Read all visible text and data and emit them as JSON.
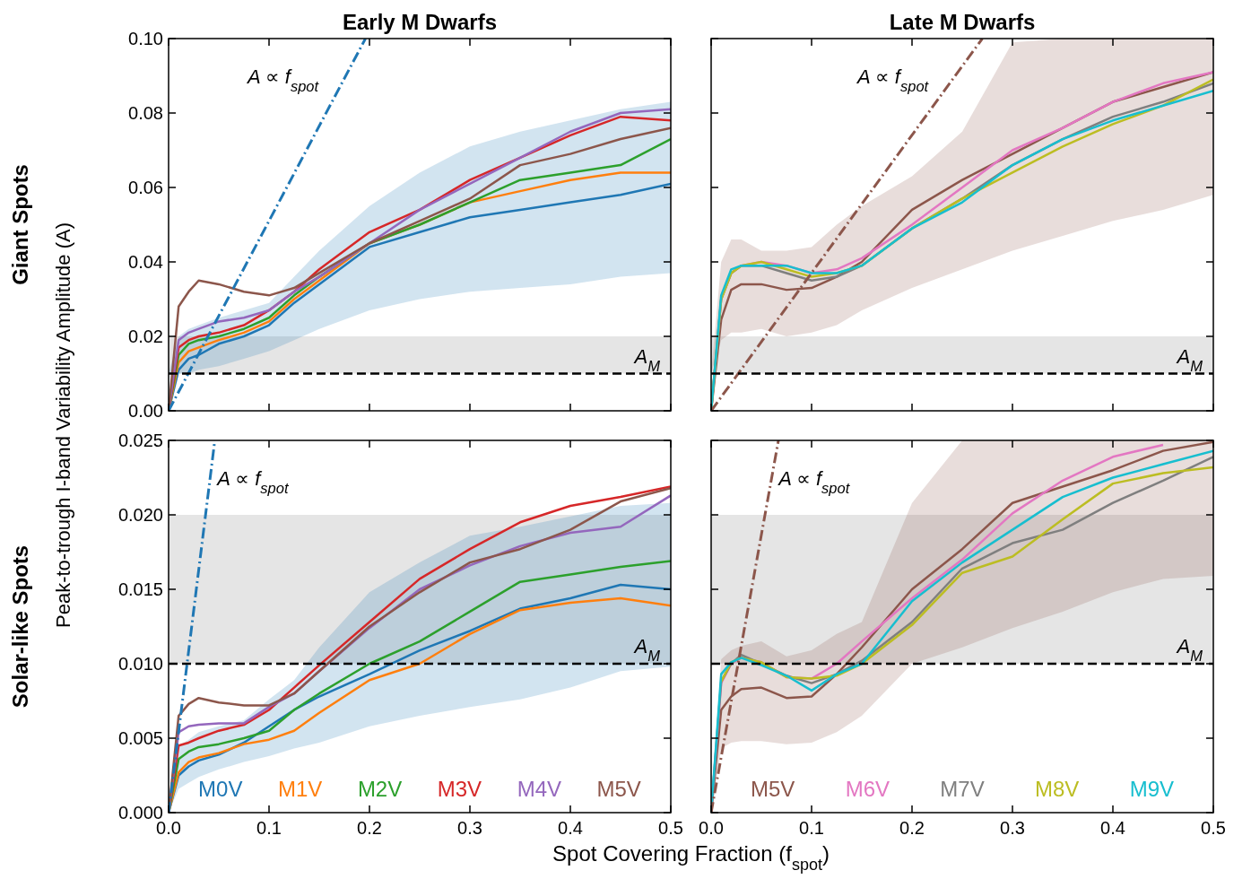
{
  "chart_data": [
    {
      "type": "line",
      "title": "Early M Dwarfs",
      "ylabel": "Giant Spots",
      "annotations": [
        "Peak-to-trough I-band Variability Amplitude  (A)",
        {
          "text": "A ∝ f$_{spot}$",
          "x": 0.176,
          "y": 0.09
        }
      ],
      "tick_labels": "y",
      "x": [
        0,
        0.01,
        0.02,
        0.03,
        0.05,
        0.075,
        0.1,
        0.125,
        0.15,
        0.2,
        0.25,
        0.3,
        0.35,
        0.4,
        0.45,
        0.5
      ],
      "xlim": [
        0,
        0.5
      ],
      "ylim": [
        0,
        0.1
      ],
      "xticks": [
        0,
        0.1,
        0.2,
        0.3,
        0.4,
        0.5
      ],
      "yticks": [
        {
          "value": 0,
          "label": "0.00"
        },
        {
          "value": 0.02,
          "label": "0.02"
        },
        {
          "value": 0.04,
          "label": "0.04"
        },
        {
          "value": 0.06,
          "label": "0.06"
        },
        {
          "value": 0.08,
          "label": "0.08"
        },
        {
          "value": 0.1,
          "label": "0.10"
        }
      ],
      "bands": [
        {
          "axis": "y",
          "from": 0.01,
          "to": 0.02,
          "color": "#e5e5e5"
        }
      ],
      "ref_lines": [
        {
          "axis": "y",
          "value": 0.01,
          "label": "A$_{M}$",
          "color": "#000000",
          "line_style": "dashed"
        }
      ],
      "series": [
        {
          "color": "#1f77b4",
          "values": [
            0,
            0.011,
            0.014,
            0.015,
            0.018,
            0.02,
            0.023,
            0.029,
            0.034,
            0.044,
            0.048,
            0.052,
            0.054,
            0.056,
            0.058,
            0.061
          ],
          "lower": [
            0.01,
            0.01,
            0.01,
            0.011,
            0.012,
            0.014,
            0.016,
            0.019,
            0.022,
            0.027,
            0.03,
            0.032,
            0.033,
            0.034,
            0.036,
            0.037
          ],
          "upper": [
            0.01,
            0.02,
            0.022,
            0.023,
            0.025,
            0.027,
            0.029,
            0.036,
            0.043,
            0.055,
            0.064,
            0.071,
            0.075,
            0.078,
            0.081,
            0.083
          ]
        },
        {
          "color": "#ff7f0e",
          "values": [
            0,
            0.013,
            0.016,
            0.017,
            0.019,
            0.021,
            0.024,
            0.03,
            0.035,
            0.045,
            0.05,
            0.056,
            0.059,
            0.062,
            0.064,
            0.064
          ]
        },
        {
          "color": "#2ca02c",
          "values": [
            0,
            0.015,
            0.018,
            0.019,
            0.02,
            0.022,
            0.025,
            0.031,
            0.036,
            0.045,
            0.05,
            0.056,
            0.062,
            0.064,
            0.066,
            0.073
          ]
        },
        {
          "color": "#d62728",
          "values": [
            0,
            0.017,
            0.019,
            0.02,
            0.021,
            0.023,
            0.027,
            0.032,
            0.038,
            0.048,
            0.054,
            0.062,
            0.068,
            0.074,
            0.079,
            0.078
          ]
        },
        {
          "color": "#9467bd",
          "values": [
            0,
            0.019,
            0.021,
            0.022,
            0.024,
            0.025,
            0.027,
            0.032,
            0.036,
            0.045,
            0.054,
            0.061,
            0.068,
            0.075,
            0.08,
            0.081
          ]
        },
        {
          "color": "#8c564b",
          "values": [
            0,
            0.028,
            0.032,
            0.035,
            0.034,
            0.032,
            0.031,
            0.033,
            0.037,
            0.045,
            0.051,
            0.057,
            0.066,
            0.069,
            0.073,
            0.076
          ]
        },
        {
          "type": "line",
          "color": "#1f77b4",
          "line_style": "dashdot",
          "x": [
            0,
            0.196
          ],
          "values": [
            0,
            0.1
          ]
        }
      ]
    },
    {
      "type": "line",
      "title": "Late M Dwarfs",
      "tick_labels": false,
      "annotations": [
        {
          "text": "A ∝ f$_{spot}$",
          "x": 0.243,
          "y": 0.09
        }
      ],
      "x": [
        0,
        0.01,
        0.02,
        0.03,
        0.05,
        0.075,
        0.1,
        0.125,
        0.15,
        0.2,
        0.25,
        0.3,
        0.35,
        0.4,
        0.45,
        0.5
      ],
      "xlim": [
        0,
        0.5
      ],
      "ylim": [
        0,
        0.1
      ],
      "xticks": [
        0,
        0.1,
        0.2,
        0.3,
        0.4,
        0.5
      ],
      "yticks": [
        0,
        0.02,
        0.04,
        0.06,
        0.08,
        0.1
      ],
      "bands": [
        {
          "axis": "y",
          "from": 0.01,
          "to": 0.02,
          "color": "#e5e5e5"
        }
      ],
      "ref_lines": [
        {
          "axis": "y",
          "value": 0.01,
          "label": "A$_{M}$",
          "color": "#000000",
          "line_style": "dashed"
        }
      ],
      "series": [
        {
          "color": "#8c564b",
          "values": [
            0,
            0.0245,
            0.0325,
            0.034,
            0.034,
            0.0325,
            0.033,
            0.036,
            0.04,
            0.054,
            0.062,
            0.069,
            0.076,
            0.083,
            0.087,
            0.091
          ],
          "lower": [
            0.01,
            0.019,
            0.021,
            0.021,
            0.022,
            0.02,
            0.021,
            0.023,
            0.027,
            0.033,
            0.038,
            0.043,
            0.047,
            0.051,
            0.054,
            0.058
          ],
          "upper": [
            0.01,
            0.04,
            0.046,
            0.046,
            0.043,
            0.043,
            0.044,
            0.05,
            0.055,
            0.063,
            0.075,
            0.099,
            0.1,
            0.1,
            0.1,
            0.1
          ]
        },
        {
          "color": "#e377c2",
          "values": [
            0,
            0.03,
            0.037,
            0.039,
            0.04,
            0.039,
            0.037,
            0.038,
            0.041,
            0.05,
            0.06,
            0.07,
            0.076,
            0.083,
            0.088,
            0.091
          ]
        },
        {
          "color": "#7f7f7f",
          "values": [
            0,
            0.03,
            0.037,
            0.039,
            0.039,
            0.037,
            0.035,
            0.036,
            0.039,
            0.049,
            0.057,
            0.066,
            0.073,
            0.079,
            0.083,
            0.088
          ]
        },
        {
          "color": "#bcbd22",
          "values": [
            0,
            0.03,
            0.037,
            0.039,
            0.04,
            0.038,
            0.036,
            0.037,
            0.039,
            0.049,
            0.057,
            0.064,
            0.071,
            0.077,
            0.082,
            0.089
          ]
        },
        {
          "color": "#17becf",
          "values": [
            0,
            0.031,
            0.038,
            0.039,
            0.039,
            0.039,
            0.037,
            0.037,
            0.039,
            0.049,
            0.056,
            0.066,
            0.073,
            0.078,
            0.082,
            0.086
          ]
        },
        {
          "type": "line",
          "color": "#8c564b",
          "line_style": "dashdot",
          "x": [
            0,
            0.27
          ],
          "values": [
            0,
            0.1
          ]
        }
      ]
    },
    {
      "type": "line",
      "ylabel": "Solar-like Spots",
      "xlabel": "Spot Covering Fraction  (f$_{spot}$)",
      "legend": "bottom",
      "annotations": [
        {
          "text": "A ∝ f$_{spot}$",
          "x": 0.0414,
          "y": 0.0225
        }
      ],
      "x": [
        0,
        0.01,
        0.02,
        0.03,
        0.05,
        0.075,
        0.1,
        0.125,
        0.15,
        0.2,
        0.25,
        0.3,
        0.35,
        0.4,
        0.45,
        0.5
      ],
      "xlim": [
        0,
        0.5
      ],
      "ylim": [
        0,
        0.025
      ],
      "xticks": [
        {
          "value": 0,
          "label": "0.0"
        },
        {
          "value": 0.1,
          "label": "0.1"
        },
        {
          "value": 0.2,
          "label": "0.2"
        },
        {
          "value": 0.3,
          "label": "0.3"
        },
        {
          "value": 0.4,
          "label": "0.4"
        },
        {
          "value": 0.5,
          "label": "0.5"
        }
      ],
      "yticks": [
        {
          "value": 0,
          "label": "0.000"
        },
        {
          "value": 0.005,
          "label": "0.005"
        },
        {
          "value": 0.01,
          "label": "0.010"
        },
        {
          "value": 0.015,
          "label": "0.015"
        },
        {
          "value": 0.02,
          "label": "0.020"
        },
        {
          "value": 0.025,
          "label": "0.025"
        }
      ],
      "bands": [
        {
          "axis": "y",
          "from": 0.01,
          "to": 0.02,
          "color": "#e5e5e5"
        }
      ],
      "ref_lines": [
        {
          "axis": "y",
          "value": 0.01,
          "label": "A$_{M}$",
          "color": "#000000",
          "line_style": "dashed"
        }
      ],
      "series": [
        {
          "name": "M0V",
          "color": "#1f77b4",
          "values": [
            0,
            0.0025,
            0.0031,
            0.0035,
            0.0039,
            0.0047,
            0.0058,
            0.0069,
            0.0078,
            0.0093,
            0.0109,
            0.0122,
            0.0137,
            0.0144,
            0.0153,
            0.015
          ],
          "lower": [
            0,
            0.0016,
            0.002,
            0.0024,
            0.0029,
            0.0034,
            0.0038,
            0.0043,
            0.0047,
            0.0058,
            0.0065,
            0.0071,
            0.0076,
            0.0084,
            0.0095,
            0.0098
          ],
          "upper": [
            0,
            0.0045,
            0.0049,
            0.0054,
            0.0058,
            0.0062,
            0.0076,
            0.0089,
            0.0111,
            0.0148,
            0.0168,
            0.0186,
            0.0192,
            0.0199,
            0.0206,
            0.0208
          ]
        },
        {
          "name": "M1V",
          "color": "#ff7f0e",
          "values": [
            0,
            0.0027,
            0.0034,
            0.0037,
            0.004,
            0.0046,
            0.0049,
            0.0055,
            0.0067,
            0.0089,
            0.01,
            0.012,
            0.0136,
            0.0141,
            0.0144,
            0.0139
          ]
        },
        {
          "name": "M2V",
          "color": "#2ca02c",
          "values": [
            0,
            0.0036,
            0.0041,
            0.0044,
            0.0046,
            0.005,
            0.0055,
            0.0069,
            0.008,
            0.01,
            0.0115,
            0.0135,
            0.0155,
            0.016,
            0.0165,
            0.0169
          ]
        },
        {
          "name": "M3V",
          "color": "#d62728",
          "values": [
            0,
            0.0045,
            0.0047,
            0.005,
            0.0055,
            0.0059,
            0.0069,
            0.0084,
            0.0099,
            0.0128,
            0.0157,
            0.0177,
            0.0195,
            0.0206,
            0.0212,
            0.0219
          ]
        },
        {
          "name": "M4V",
          "color": "#9467bd",
          "values": [
            0,
            0.0054,
            0.0058,
            0.0059,
            0.006,
            0.006,
            0.0071,
            0.008,
            0.0095,
            0.0124,
            0.015,
            0.0166,
            0.0179,
            0.0188,
            0.0192,
            0.0213
          ]
        },
        {
          "name": "M5V",
          "color": "#8c564b",
          "values": [
            0,
            0.0065,
            0.0073,
            0.0077,
            0.0074,
            0.0072,
            0.0072,
            0.008,
            0.0095,
            0.0125,
            0.0148,
            0.0168,
            0.0177,
            0.019,
            0.0209,
            0.0218
          ]
        },
        {
          "type": "line",
          "color": "#1f77b4",
          "line_style": "dashdot",
          "x": [
            0,
            0.046
          ],
          "values": [
            0,
            0.025
          ]
        }
      ]
    },
    {
      "type": "line",
      "tick_labels": "x",
      "legend": "bottom",
      "annotations": [
        {
          "text": "A ∝ f$_{spot}$",
          "x": 0.06,
          "y": 0.0225
        }
      ],
      "x": [
        0,
        0.01,
        0.02,
        0.03,
        0.05,
        0.075,
        0.1,
        0.125,
        0.15,
        0.2,
        0.25,
        0.3,
        0.35,
        0.4,
        0.45,
        0.5
      ],
      "xlim": [
        0,
        0.5
      ],
      "ylim": [
        0,
        0.025
      ],
      "xticks": [
        {
          "value": 0,
          "label": "0.0"
        },
        {
          "value": 0.1,
          "label": "0.1"
        },
        {
          "value": 0.2,
          "label": "0.2"
        },
        {
          "value": 0.3,
          "label": "0.3"
        },
        {
          "value": 0.4,
          "label": "0.4"
        },
        {
          "value": 0.5,
          "label": "0.5"
        }
      ],
      "yticks": [
        0,
        0.005,
        0.01,
        0.015,
        0.02,
        0.025
      ],
      "bands": [
        {
          "axis": "y",
          "from": 0.01,
          "to": 0.02,
          "color": "#e5e5e5"
        }
      ],
      "ref_lines": [
        {
          "axis": "y",
          "value": 0.01,
          "label": "A$_{M}$",
          "color": "#000000",
          "line_style": "dashed"
        }
      ],
      "series": [
        {
          "name": "M5V",
          "color": "#8c564b",
          "values": [
            0,
            0.0069,
            0.0078,
            0.0083,
            0.0084,
            0.0077,
            0.0078,
            0.0093,
            0.0111,
            0.015,
            0.0177,
            0.0208,
            0.0219,
            0.023,
            0.0243,
            0.0249
          ],
          "lower": [
            0,
            0.0043,
            0.0047,
            0.0048,
            0.0048,
            0.0046,
            0.0047,
            0.0054,
            0.0065,
            0.01,
            0.0111,
            0.0124,
            0.0135,
            0.0148,
            0.0157,
            0.0159
          ],
          "upper": [
            0,
            0.0103,
            0.0109,
            0.0112,
            0.0115,
            0.0105,
            0.0109,
            0.012,
            0.0128,
            0.0208,
            0.025,
            0.025,
            0.025,
            0.025,
            0.025,
            0.025
          ]
        },
        {
          "name": "M6V",
          "color": "#e377c2",
          "values": [
            0,
            0.0087,
            0.01,
            0.0104,
            0.0101,
            0.0091,
            0.009,
            0.01,
            0.0115,
            0.0144,
            0.017,
            0.0201,
            0.0223,
            0.0239,
            0.0247,
            null
          ]
        },
        {
          "name": "M7V",
          "color": "#7f7f7f",
          "values": [
            0,
            0.0088,
            0.01,
            0.0106,
            0.01,
            0.0092,
            0.0087,
            0.0093,
            0.0102,
            0.0128,
            0.0164,
            0.0181,
            0.019,
            0.0208,
            0.0223,
            0.0239
          ]
        },
        {
          "name": "M8V",
          "color": "#bcbd22",
          "values": [
            null,
            0.0088,
            0.0101,
            0.0104,
            0.0101,
            0.0091,
            0.009,
            0.0092,
            0.01,
            0.0126,
            0.0161,
            0.0172,
            0.0197,
            0.0221,
            0.0228,
            0.0232
          ]
        },
        {
          "name": "M9V",
          "color": "#17becf",
          "values": [
            0,
            0.0093,
            0.0101,
            0.0104,
            0.0099,
            0.0092,
            0.0082,
            0.0093,
            0.01,
            0.0142,
            0.0168,
            0.019,
            0.0212,
            0.0225,
            0.0234,
            0.0243
          ]
        },
        {
          "type": "line",
          "color": "#8c564b",
          "line_style": "dashdot",
          "x": [
            0,
            0.067
          ],
          "values": [
            0,
            0.025
          ]
        }
      ]
    }
  ]
}
